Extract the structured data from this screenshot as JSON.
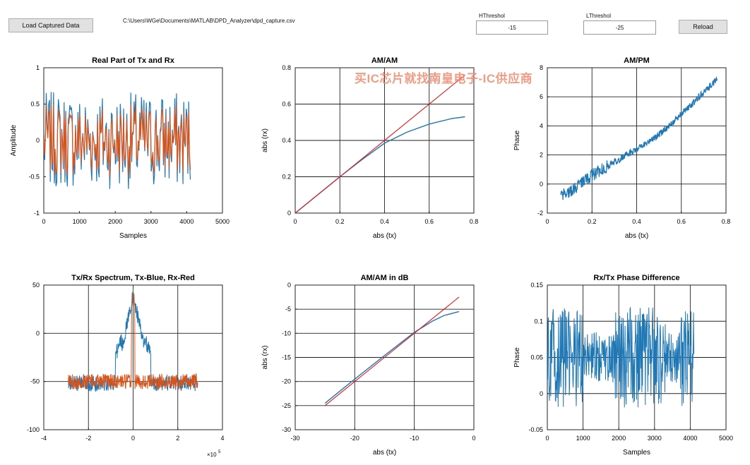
{
  "controls": {
    "load_label": "Load Captured Data",
    "file_path": "C:\\Users\\WGe\\Documents\\MATLAB\\DPD_Analyzer\\dpd_capture.csv",
    "hthreshold_label": "HThreshol",
    "hthreshold_value": "-15",
    "lthreshold_label": "LThreshol",
    "lthreshold_value": "-25",
    "reload_label": "Reload"
  },
  "watermark": "买IC芯片就找南皇电子-IC供应商",
  "colors": {
    "tx": "#1f77b4",
    "rx": "#d95319",
    "fit": "#e41a1c"
  },
  "chart_data": [
    {
      "type": "line",
      "title": "Real Part of Tx and Rx",
      "xlabel": "Samples",
      "ylabel": "Amplitude",
      "xlim": [
        0,
        5000
      ],
      "ylim": [
        -1,
        1
      ],
      "xticks": [
        0,
        1000,
        2000,
        3000,
        4000,
        5000
      ],
      "yticks": [
        -1,
        -0.5,
        0,
        0.5,
        1
      ],
      "xticklabels": [
        "0",
        "1000",
        "2000",
        "3000",
        "4000",
        "5000"
      ],
      "yticklabels": [
        "-1",
        "-0.5",
        "0",
        "0.5",
        "1"
      ],
      "grid": false,
      "series": [
        {
          "role": "tx",
          "x_range": [
            0,
            4100
          ],
          "amplitude_range": [
            -0.72,
            0.64
          ]
        },
        {
          "role": "rx",
          "x_range": [
            0,
            4100
          ],
          "amplitude_range": [
            -0.55,
            0.55
          ]
        }
      ]
    },
    {
      "type": "line",
      "title": "AM/AM",
      "xlabel": "abs (tx)",
      "ylabel": "abs (rx)",
      "xlim": [
        0,
        0.8
      ],
      "ylim": [
        0,
        0.8
      ],
      "xticks": [
        0,
        0.2,
        0.4,
        0.6,
        0.8
      ],
      "yticks": [
        0,
        0.2,
        0.4,
        0.6,
        0.8
      ],
      "xticklabels": [
        "0",
        "0.2",
        "0.4",
        "0.6",
        "0.8"
      ],
      "yticklabels": [
        "0",
        "0.2",
        "0.4",
        "0.6",
        "0.8"
      ],
      "grid": true,
      "series": [
        {
          "role": "tx",
          "x": [
            0,
            0.1,
            0.2,
            0.3,
            0.4,
            0.5,
            0.6,
            0.7,
            0.76
          ],
          "y": [
            0,
            0.1,
            0.2,
            0.295,
            0.385,
            0.445,
            0.49,
            0.52,
            0.53
          ]
        },
        {
          "role": "fit",
          "x": [
            0,
            0.76
          ],
          "y": [
            0,
            0.76
          ]
        }
      ]
    },
    {
      "type": "scatter",
      "title": "AM/PM",
      "xlabel": "abs (tx)",
      "ylabel": "Phase",
      "xlim": [
        0,
        0.8
      ],
      "ylim": [
        -2,
        8
      ],
      "xticks": [
        0,
        0.2,
        0.4,
        0.6,
        0.8
      ],
      "yticks": [
        -2,
        0,
        2,
        4,
        6,
        8
      ],
      "xticklabels": [
        "0",
        "0.2",
        "0.4",
        "0.6",
        "0.8"
      ],
      "yticklabels": [
        "-2",
        "0",
        "2",
        "4",
        "6",
        "8"
      ],
      "grid": true,
      "series": [
        {
          "role": "tx",
          "x": [
            0.06,
            0.1,
            0.2,
            0.3,
            0.4,
            0.5,
            0.6,
            0.7,
            0.76
          ],
          "y": [
            -0.8,
            -0.5,
            0.6,
            1.5,
            2.4,
            3.4,
            4.8,
            6.3,
            7.2
          ]
        }
      ]
    },
    {
      "type": "line",
      "title": "Tx/Rx Spectrum, Tx-Blue, Rx-Red",
      "xlabel": "",
      "ylabel": "",
      "xlim": [
        -4,
        4
      ],
      "ylim": [
        -100,
        50
      ],
      "xticks": [
        -4,
        -2,
        0,
        2,
        4
      ],
      "yticks": [
        -100,
        -50,
        0,
        50
      ],
      "xticklabels": [
        "-4",
        "-2",
        "0",
        "2",
        "4"
      ],
      "yticklabels": [
        "-100",
        "-50",
        "0",
        "50"
      ],
      "x_multiplier": "×10",
      "x_multiplier_exp": "5",
      "grid": true,
      "series": [
        {
          "role": "tx",
          "x_range": [
            -2.9,
            2.9
          ],
          "floor": -55,
          "peak": 40
        },
        {
          "role": "rx",
          "x_range": [
            -2.9,
            2.9
          ],
          "floor": -50,
          "peak": 45
        }
      ]
    },
    {
      "type": "line",
      "title": "AM/AM in dB",
      "xlabel": "abs (tx)",
      "ylabel": "abs (rx)",
      "xlim": [
        -30,
        0
      ],
      "ylim": [
        -30,
        0
      ],
      "xticks": [
        -30,
        -20,
        -10,
        0
      ],
      "yticks": [
        -30,
        -25,
        -20,
        -15,
        -10,
        -5,
        0
      ],
      "xticklabels": [
        "-30",
        "-20",
        "-10",
        "0"
      ],
      "yticklabels": [
        "-30",
        "-25",
        "-20",
        "-15",
        "-10",
        "-5",
        "0"
      ],
      "grid": true,
      "series": [
        {
          "role": "tx",
          "x": [
            -25,
            -20,
            -15,
            -10,
            -7,
            -5,
            -2.5
          ],
          "y": [
            -24.5,
            -19.5,
            -14.6,
            -9.8,
            -7.5,
            -6.3,
            -5.5
          ]
        },
        {
          "role": "fit",
          "x": [
            -25,
            -2.5
          ],
          "y": [
            -25,
            -2.5
          ]
        }
      ]
    },
    {
      "type": "line",
      "title": "Rx/Tx Phase Difference",
      "xlabel": "Samples",
      "ylabel": "Phase",
      "xlim": [
        0,
        5000
      ],
      "ylim": [
        -0.05,
        0.15
      ],
      "xticks": [
        0,
        1000,
        2000,
        3000,
        4000,
        5000
      ],
      "yticks": [
        -0.05,
        0,
        0.05,
        0.1,
        0.15
      ],
      "xticklabels": [
        "0",
        "1000",
        "2000",
        "3000",
        "4000",
        "5000"
      ],
      "yticklabels": [
        "-0.05",
        "0",
        "0.05",
        "0.1",
        "0.15"
      ],
      "grid": true,
      "series": [
        {
          "role": "tx",
          "x_range": [
            0,
            4100
          ],
          "center": 0.05,
          "range": [
            -0.02,
            0.125
          ]
        }
      ]
    }
  ]
}
